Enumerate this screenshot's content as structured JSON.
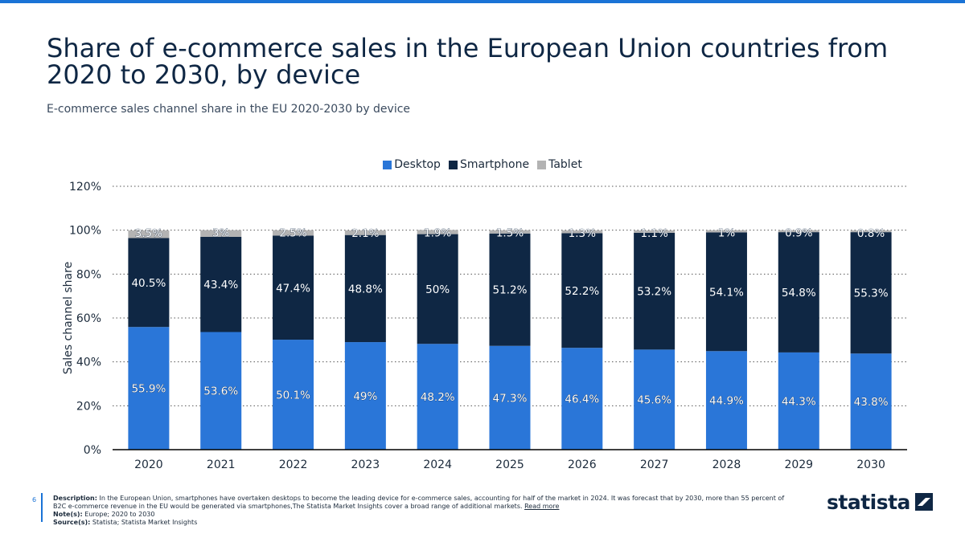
{
  "page": {
    "title": "Share of e-commerce sales in the European Union countries from 2020 to 2030, by device",
    "subtitle": "E-commerce sales channel share in the EU 2020-2030 by device",
    "page_number": "6"
  },
  "footer": {
    "description_label": "Description:",
    "description": "In the European Union, smartphones have overtaken desktops to become the leading device for e-commerce sales, accounting for half of the market in 2024. It was forecast that by 2030, more than 55 percent of B2C e-commerce revenue in the EU would be generated via smartphones,The Statista Market Insights cover a broad range of additional markets.",
    "read_more": "Read more",
    "notes_label": "Note(s):",
    "notes": "Europe; 2020 to 2030",
    "sources_label": "Source(s):",
    "sources": "Statista; Statista Market Insights"
  },
  "brand": {
    "logo_text": "statista"
  },
  "colors": {
    "desktop": "#2a76d8",
    "smartphone": "#0f2744",
    "tablet": "#b3b3b3",
    "accent": "#1a73d6"
  },
  "chart_data": {
    "type": "bar",
    "stacked": true,
    "categories": [
      "2020",
      "2021",
      "2022",
      "2023",
      "2024",
      "2025",
      "2026",
      "2027",
      "2028",
      "2029",
      "2030"
    ],
    "series": [
      {
        "name": "Desktop",
        "values": [
          55.9,
          53.6,
          50.1,
          49,
          48.2,
          47.3,
          46.4,
          45.6,
          44.9,
          44.3,
          43.8
        ],
        "labels": [
          "55.9%",
          "53.6%",
          "50.1%",
          "49%",
          "48.2%",
          "47.3%",
          "46.4%",
          "45.6%",
          "44.9%",
          "44.3%",
          "43.8%"
        ]
      },
      {
        "name": "Smartphone",
        "values": [
          40.5,
          43.4,
          47.4,
          48.8,
          50,
          51.2,
          52.2,
          53.2,
          54.1,
          54.8,
          55.3
        ],
        "labels": [
          "40.5%",
          "43.4%",
          "47.4%",
          "48.8%",
          "50%",
          "51.2%",
          "52.2%",
          "53.2%",
          "54.1%",
          "54.8%",
          "55.3%"
        ]
      },
      {
        "name": "Tablet",
        "values": [
          3.5,
          3,
          2.5,
          2.1,
          1.9,
          1.5,
          1.3,
          1.1,
          1,
          0.9,
          0.8
        ],
        "labels": [
          "3.5%",
          "3%",
          "2.5%",
          "2.1%",
          "1.9%",
          "1.5%",
          "1.3%",
          "1.1%",
          "1%",
          "0.9%",
          "0.8%"
        ]
      }
    ],
    "ylabel": "Sales channel share",
    "ylim": [
      0,
      120
    ],
    "yticks": [
      0,
      20,
      40,
      60,
      80,
      100,
      120
    ],
    "ytick_labels": [
      "0%",
      "20%",
      "40%",
      "60%",
      "80%",
      "100%",
      "120%"
    ],
    "grid": true,
    "legend_position": "top-center"
  }
}
